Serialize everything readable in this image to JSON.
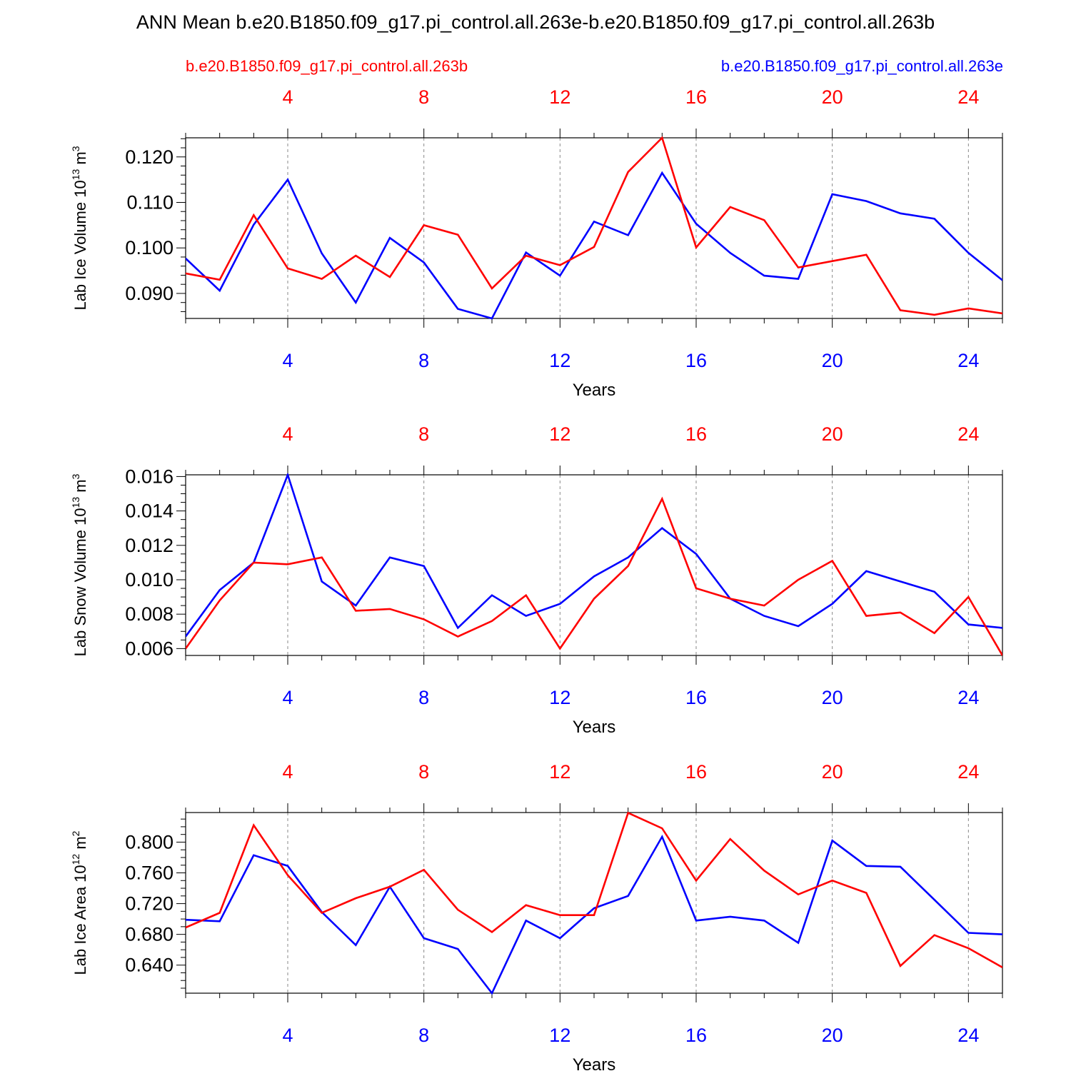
{
  "title": "ANN Mean b.e20.B1850.f09_g17.pi_control.all.263e-b.e20.B1850.f09_g17.pi_control.all.263b",
  "legend": {
    "left_case": "b.e20.B1850.f09_g17.pi_control.all.263b",
    "right_case": "b.e20.B1850.f09_g17.pi_control.all.263e"
  },
  "colors": {
    "case_b": "#ff0000",
    "case_e": "#0000ff",
    "axis": "#000000",
    "grid": "#888888"
  },
  "chart_data": [
    {
      "type": "line",
      "ylabel": "Lab Ice Volume 10",
      "ylabel_exp": "13",
      "ylabel_unit": " m",
      "ylabel_unit_exp": "3",
      "xlabel": "Years",
      "xlim": [
        1,
        25
      ],
      "ylim": [
        0.0845,
        0.1242
      ],
      "yticks": [
        0.09,
        0.1,
        0.11,
        0.12
      ],
      "ytick_labels": [
        "0.090",
        "0.100",
        "0.110",
        "0.120"
      ],
      "yminor": [
        0.086,
        0.088,
        0.092,
        0.094,
        0.096,
        0.098,
        0.102,
        0.104,
        0.106,
        0.108,
        0.112,
        0.114,
        0.116,
        0.118,
        0.122,
        0.124
      ],
      "xticks": [
        4,
        8,
        12,
        16,
        20,
        24
      ],
      "xtick_labels": [
        "4",
        "8",
        "12",
        "16",
        "20",
        "24"
      ],
      "x": [
        1,
        2,
        3,
        4,
        5,
        6,
        7,
        8,
        9,
        10,
        11,
        12,
        13,
        14,
        15,
        16,
        17,
        18,
        19,
        20,
        21,
        22,
        23,
        24,
        25
      ],
      "series": [
        {
          "name": "b.e20.B1850.f09_g17.pi_control.all.263e",
          "color": "#0000ff",
          "values": [
            0.0977,
            0.0906,
            0.1051,
            0.115,
            0.0988,
            0.088,
            0.1022,
            0.0968,
            0.0866,
            0.0845,
            0.099,
            0.0939,
            0.1058,
            0.1028,
            0.1165,
            0.1053,
            0.0989,
            0.0939,
            0.0932,
            0.1118,
            0.1103,
            0.1076,
            0.1064,
            0.0989,
            0.0929
          ]
        },
        {
          "name": "b.e20.B1850.f09_g17.pi_control.all.263b",
          "color": "#ff0000",
          "values": [
            0.0944,
            0.093,
            0.1072,
            0.0955,
            0.0932,
            0.0983,
            0.0936,
            0.105,
            0.1029,
            0.0911,
            0.0983,
            0.0962,
            0.1002,
            0.1167,
            0.1242,
            0.1001,
            0.109,
            0.1061,
            0.0957,
            0.0971,
            0.0985,
            0.0863,
            0.0853,
            0.0867,
            0.0856
          ]
        }
      ]
    },
    {
      "type": "line",
      "ylabel": "Lab Snow Volume 10",
      "ylabel_exp": "13",
      "ylabel_unit": " m",
      "ylabel_unit_exp": "3",
      "xlabel": "Years",
      "xlim": [
        1,
        25
      ],
      "ylim": [
        0.0056,
        0.0161
      ],
      "yticks": [
        0.006,
        0.008,
        0.01,
        0.012,
        0.014,
        0.016
      ],
      "ytick_labels": [
        "0.006",
        "0.008",
        "0.010",
        "0.012",
        "0.014",
        "0.016"
      ],
      "yminor": [
        0.0065,
        0.007,
        0.0075,
        0.0085,
        0.009,
        0.0095,
        0.0105,
        0.011,
        0.0115,
        0.0125,
        0.013,
        0.0135,
        0.0145,
        0.015,
        0.0155
      ],
      "xticks": [
        4,
        8,
        12,
        16,
        20,
        24
      ],
      "xtick_labels": [
        "4",
        "8",
        "12",
        "16",
        "20",
        "24"
      ],
      "x": [
        1,
        2,
        3,
        4,
        5,
        6,
        7,
        8,
        9,
        10,
        11,
        12,
        13,
        14,
        15,
        16,
        17,
        18,
        19,
        20,
        21,
        22,
        23,
        24,
        25
      ],
      "series": [
        {
          "name": "b.e20.B1850.f09_g17.pi_control.all.263e",
          "color": "#0000ff",
          "values": [
            0.0067,
            0.0094,
            0.011,
            0.0161,
            0.0099,
            0.0085,
            0.0113,
            0.0108,
            0.0072,
            0.0091,
            0.0079,
            0.0086,
            0.0102,
            0.0113,
            0.013,
            0.0115,
            0.0089,
            0.0079,
            0.0073,
            0.0086,
            0.0105,
            0.0099,
            0.0093,
            0.0074,
            0.0072
          ]
        },
        {
          "name": "b.e20.B1850.f09_g17.pi_control.all.263b",
          "color": "#ff0000",
          "values": [
            0.006,
            0.0088,
            0.011,
            0.0109,
            0.0113,
            0.0082,
            0.0083,
            0.0077,
            0.0067,
            0.0076,
            0.0091,
            0.006,
            0.0089,
            0.0108,
            0.0147,
            0.0095,
            0.0089,
            0.0085,
            0.01,
            0.0111,
            0.0079,
            0.0081,
            0.0069,
            0.009,
            0.0056
          ]
        }
      ]
    },
    {
      "type": "line",
      "ylabel": "Lab Ice Area 10",
      "ylabel_exp": "12",
      "ylabel_unit": " m",
      "ylabel_unit_exp": "2",
      "xlabel": "Years",
      "xlim": [
        1,
        25
      ],
      "ylim": [
        0.6035,
        0.8385
      ],
      "yticks": [
        0.64,
        0.68,
        0.72,
        0.76,
        0.8
      ],
      "ytick_labels": [
        "0.640",
        "0.680",
        "0.720",
        "0.760",
        "0.800"
      ],
      "yminor": [
        0.61,
        0.62,
        0.63,
        0.65,
        0.66,
        0.67,
        0.69,
        0.7,
        0.71,
        0.73,
        0.74,
        0.75,
        0.77,
        0.78,
        0.79,
        0.81,
        0.82,
        0.83
      ],
      "xticks": [
        4,
        8,
        12,
        16,
        20,
        24
      ],
      "xtick_labels": [
        "4",
        "8",
        "12",
        "16",
        "20",
        "24"
      ],
      "x": [
        1,
        2,
        3,
        4,
        5,
        6,
        7,
        8,
        9,
        10,
        11,
        12,
        13,
        14,
        15,
        16,
        17,
        18,
        19,
        20,
        21,
        22,
        23,
        24,
        25
      ],
      "series": [
        {
          "name": "b.e20.B1850.f09_g17.pi_control.all.263e",
          "color": "#0000ff",
          "values": [
            0.699,
            0.697,
            0.783,
            0.769,
            0.709,
            0.666,
            0.742,
            0.675,
            0.661,
            0.6035,
            0.698,
            0.675,
            0.714,
            0.73,
            0.807,
            0.698,
            0.703,
            0.698,
            0.669,
            0.802,
            0.769,
            0.768,
            0.725,
            0.682,
            0.68
          ]
        },
        {
          "name": "b.e20.B1850.f09_g17.pi_control.all.263b",
          "color": "#ff0000",
          "values": [
            0.689,
            0.708,
            0.822,
            0.757,
            0.708,
            0.727,
            0.742,
            0.764,
            0.712,
            0.683,
            0.718,
            0.705,
            0.705,
            0.838,
            0.818,
            0.75,
            0.804,
            0.763,
            0.732,
            0.75,
            0.734,
            0.639,
            0.679,
            0.662,
            0.637
          ]
        }
      ]
    }
  ]
}
